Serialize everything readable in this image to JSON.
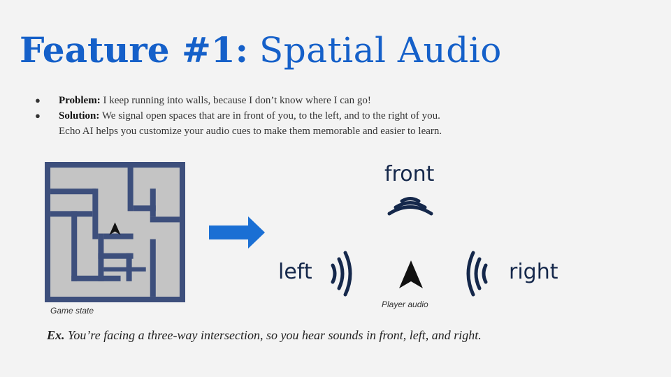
{
  "slide": {
    "title_bold": "Feature #1:",
    "title_light": "Spatial Audio",
    "bullets": [
      {
        "label": "Problem:",
        "text": "I keep running into walls, because I don’t know where I can go!"
      },
      {
        "label": "Solution:",
        "text": "We signal open spaces that are in front of you, to the left, and to the right of you.",
        "text2": "Echo AI helps you customize your audio cues to make them memorable and easier to learn."
      }
    ],
    "bullet_glyph": "●",
    "game_state_caption": "Game state",
    "player_audio_caption": "Player audio",
    "cue_labels": {
      "front": "front",
      "left": "left",
      "right": "right"
    },
    "example_label": "Ex.",
    "example_text": "You’re facing a three-way intersection, so you hear sounds in front, left, and right."
  },
  "colors": {
    "title": "#1560c9",
    "arrow": "#1a6fd4",
    "cue": "#15284b",
    "maze_wall": "#3d4f7c",
    "maze_floor": "#c4c4c4"
  }
}
